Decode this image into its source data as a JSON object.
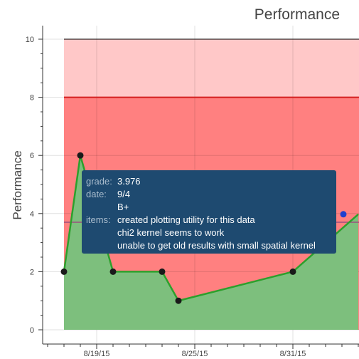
{
  "chart_data": {
    "type": "line",
    "title": "Performance",
    "ylabel": "Performance",
    "xlabel": "",
    "ylim": [
      0,
      10
    ],
    "xlim": [
      "2015-08-16",
      "2015-09-04"
    ],
    "x_ticks": [
      "8/19/15",
      "8/25/15",
      "8/31/15"
    ],
    "y_ticks": [
      "0",
      "2",
      "4",
      "6",
      "8",
      "10"
    ],
    "bands": [
      {
        "from": 8,
        "to": 10,
        "color": "#ffc8c8"
      },
      {
        "from": 0,
        "to": 8,
        "color": "#ff8080"
      }
    ],
    "threshold_lines": [
      {
        "y": 8,
        "color": "#d42020"
      },
      {
        "y": 3.7,
        "color": "#9b4f7e"
      },
      {
        "y": 10,
        "color": "#000000"
      }
    ],
    "series": [
      {
        "points": [
          {
            "x": "2015-08-17",
            "y": 2
          },
          {
            "x": "2015-08-18",
            "y": 6
          },
          {
            "x": "2015-08-20",
            "y": 2
          },
          {
            "x": "2015-08-23",
            "y": 2
          },
          {
            "x": "2015-08-24",
            "y": 1
          },
          {
            "x": "2015-08-31",
            "y": 2
          },
          {
            "x": "2015-09-04",
            "y": 3.976
          }
        ],
        "line_color": "#2ca02c",
        "fill_color": "#7dbf7d",
        "marker_color": "#1a1a1a",
        "highlight_color": "#1f3fcf"
      }
    ],
    "grid": true
  },
  "tooltip": {
    "grade_label": "grade:",
    "grade_value": "3.976",
    "date_label": "date:",
    "date_value": "9/4",
    "letter_value": "B+",
    "items_label": "items:",
    "items": [
      "created plotting utility for this data",
      "chi2 kernel seems to work",
      "unable to get old results with small spatial kernel"
    ]
  }
}
